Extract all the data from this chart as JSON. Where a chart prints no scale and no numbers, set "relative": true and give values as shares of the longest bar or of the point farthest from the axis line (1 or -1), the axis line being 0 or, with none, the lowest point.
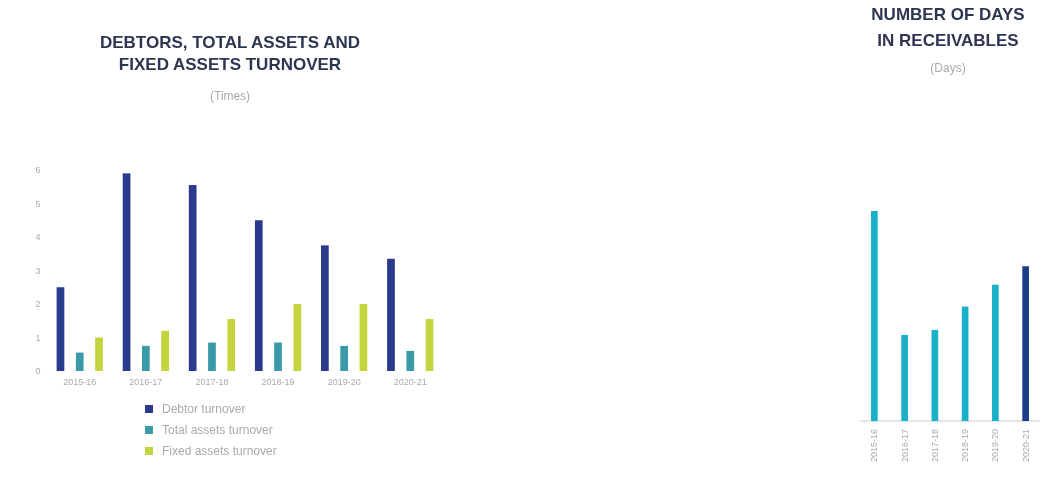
{
  "chart_data": [
    {
      "type": "bar",
      "title": "DEBTORS, TOTAL ASSETS AND FIXED ASSETS TURNOVER",
      "subtitle": "(Times)",
      "categories": [
        "2015-16",
        "2016-17",
        "2017-18",
        "2018-19",
        "2019-20",
        "2020-21"
      ],
      "series": [
        {
          "name": "Debtor turnover",
          "color": "#2a3a8c",
          "values": [
            2.5,
            5.9,
            5.55,
            4.5,
            3.75,
            3.35
          ]
        },
        {
          "name": "Total assets turnover",
          "color": "#3a9aa8",
          "values": [
            0.55,
            0.75,
            0.85,
            0.85,
            0.75,
            0.6
          ]
        },
        {
          "name": "Fixed assets turnover",
          "color": "#c4d43c",
          "values": [
            1.0,
            1.2,
            1.55,
            2.0,
            2.0,
            1.55
          ]
        }
      ],
      "ylim": [
        0,
        6
      ],
      "yticks": [
        0,
        1,
        2,
        3,
        4,
        5,
        6
      ],
      "legend": "bottom"
    },
    {
      "type": "bar",
      "title": "NUMBER OF DAYS IN RECEIVABLES",
      "subtitle": "(Days)",
      "categories": [
        "2015-16",
        "2016-17",
        "2017-18",
        "2018-19",
        "2019-20",
        "2020-21"
      ],
      "values": [
        1,
        0.41,
        0.434,
        0.545,
        0.649,
        0.737
      ],
      "colors": [
        "#1ab0c8",
        "#1ab0c8",
        "#1ab0c8",
        "#1ab0c8",
        "#1ab0c8",
        "#1a3c8c"
      ],
      "relative": true
    }
  ]
}
